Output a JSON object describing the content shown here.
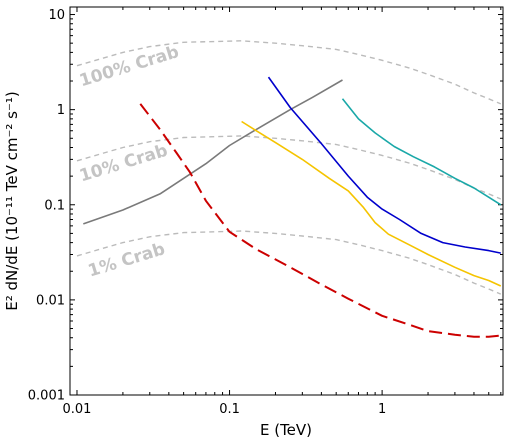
{
  "chart_data": {
    "type": "line",
    "title": "",
    "xlabel": "E (TeV)",
    "ylabel": "E² dN/dE (10⁻¹¹ TeV cm⁻² s⁻¹)",
    "xscale": "log",
    "yscale": "log",
    "xlim": [
      0.009,
      6.2
    ],
    "ylim": [
      0.001,
      12
    ],
    "grid": false,
    "xticks": [
      {
        "value": 0.01,
        "label": "0.01"
      },
      {
        "value": 0.1,
        "label": "0.1"
      },
      {
        "value": 1,
        "label": "1"
      }
    ],
    "yticks": [
      {
        "value": 0.001,
        "label": "0.001"
      },
      {
        "value": 0.01,
        "label": "0.01"
      },
      {
        "value": 0.1,
        "label": "0.1"
      },
      {
        "value": 1,
        "label": "1"
      },
      {
        "value": 10,
        "label": "10"
      }
    ],
    "series": [
      {
        "color": "#bbbbbb",
        "dash": "dashed",
        "x": [
          0.01,
          0.015,
          0.02,
          0.03,
          0.05,
          0.08,
          0.12,
          0.2,
          0.3,
          0.5,
          0.7,
          1.0,
          1.5,
          2.0,
          3.0,
          4.0,
          5.0,
          6.0
        ],
        "y": [
          2.9,
          3.5,
          4.0,
          4.6,
          5.1,
          5.2,
          5.3,
          5.0,
          4.7,
          4.3,
          3.8,
          3.3,
          2.75,
          2.35,
          1.85,
          1.5,
          1.3,
          1.15
        ]
      },
      {
        "color": "#bbbbbb",
        "dash": "dashed",
        "x": [
          0.01,
          0.015,
          0.02,
          0.03,
          0.05,
          0.08,
          0.12,
          0.2,
          0.3,
          0.5,
          0.7,
          1.0,
          1.5,
          2.0,
          3.0,
          4.0,
          5.0,
          6.0
        ],
        "y": [
          0.29,
          0.35,
          0.4,
          0.46,
          0.51,
          0.52,
          0.53,
          0.5,
          0.47,
          0.43,
          0.38,
          0.33,
          0.275,
          0.235,
          0.185,
          0.15,
          0.13,
          0.115
        ]
      },
      {
        "color": "#bbbbbb",
        "dash": "dashed",
        "x": [
          0.01,
          0.015,
          0.02,
          0.03,
          0.05,
          0.08,
          0.12,
          0.2,
          0.3,
          0.5,
          0.7,
          1.0,
          1.5,
          2.0,
          3.0,
          4.0,
          5.0,
          6.0
        ],
        "y": [
          0.029,
          0.035,
          0.04,
          0.046,
          0.051,
          0.052,
          0.053,
          0.05,
          0.047,
          0.043,
          0.038,
          0.033,
          0.0275,
          0.0235,
          0.0185,
          0.015,
          0.013,
          0.0115
        ]
      },
      {
        "color": "#7a7a7a",
        "dash": "solid",
        "x": [
          0.011,
          0.02,
          0.035,
          0.07,
          0.1,
          0.15,
          0.25,
          0.35,
          0.55
        ],
        "y": [
          0.063,
          0.088,
          0.13,
          0.27,
          0.42,
          0.62,
          1.0,
          1.35,
          2.05
        ]
      },
      {
        "color": "#cc0000",
        "dash": "longdash",
        "x": [
          0.026,
          0.035,
          0.045,
          0.055,
          0.07,
          0.1,
          0.15,
          0.25,
          0.4,
          0.6,
          1.0,
          1.5,
          2.0,
          3.0,
          4.0,
          5.0,
          5.9
        ],
        "y": [
          1.15,
          0.62,
          0.35,
          0.22,
          0.11,
          0.052,
          0.034,
          0.022,
          0.0145,
          0.0103,
          0.0068,
          0.0055,
          0.0047,
          0.0043,
          0.0041,
          0.0041,
          0.0042
        ]
      },
      {
        "color": "#f5c400",
        "dash": "solid",
        "x": [
          0.12,
          0.15,
          0.2,
          0.3,
          0.45,
          0.6,
          0.75,
          0.9,
          1.1,
          1.5,
          2.0,
          3.0,
          4.0,
          5.0,
          6.0
        ],
        "y": [
          0.75,
          0.6,
          0.45,
          0.3,
          0.19,
          0.14,
          0.095,
          0.065,
          0.049,
          0.038,
          0.03,
          0.022,
          0.018,
          0.016,
          0.014
        ]
      },
      {
        "color": "#0000cc",
        "dash": "solid",
        "x": [
          0.18,
          0.25,
          0.4,
          0.6,
          0.8,
          1.0,
          1.3,
          1.8,
          2.5,
          3.5,
          5.0,
          6.0
        ],
        "y": [
          2.2,
          1.05,
          0.44,
          0.2,
          0.12,
          0.09,
          0.07,
          0.05,
          0.04,
          0.036,
          0.033,
          0.031
        ]
      },
      {
        "color": "#1aa8a8",
        "dash": "solid",
        "x": [
          0.55,
          0.7,
          0.9,
          1.2,
          1.6,
          2.2,
          3.0,
          4.0,
          5.0,
          6.0
        ],
        "y": [
          1.3,
          0.8,
          0.57,
          0.41,
          0.32,
          0.25,
          0.19,
          0.15,
          0.12,
          0.1
        ]
      }
    ],
    "annotations": [
      {
        "text": "100% Crab",
        "x": 0.0107,
        "y": 1.75
      },
      {
        "text": "10% Crab",
        "x": 0.0107,
        "y": 0.175
      },
      {
        "text": "1% Crab",
        "x": 0.0122,
        "y": 0.0175
      }
    ]
  }
}
